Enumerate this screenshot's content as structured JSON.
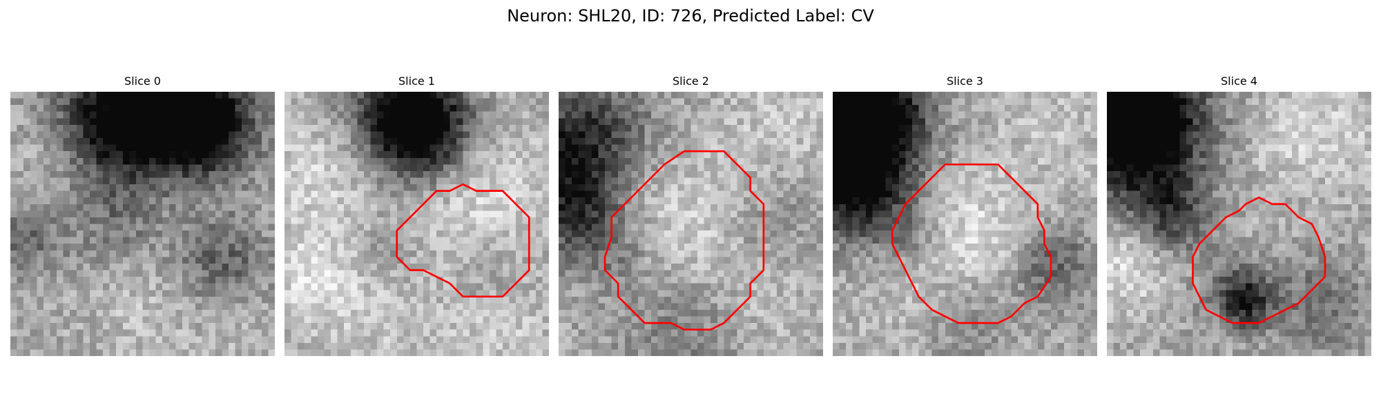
{
  "figure": {
    "title": "Neuron: SHL20, ID: 726, Predicted Label: CV"
  },
  "panels": [
    {
      "title": "Slice 0",
      "contour": []
    },
    {
      "title": "Slice 1",
      "contour": [
        [
          14.5,
          7.5
        ],
        [
          16.5,
          7.5
        ],
        [
          18.5,
          9.5
        ],
        [
          18.5,
          13.5
        ],
        [
          17.5,
          14.5
        ],
        [
          16.5,
          15.5
        ],
        [
          13.5,
          15.5
        ],
        [
          12.5,
          14.5
        ],
        [
          11.5,
          14.0
        ],
        [
          10.5,
          13.5
        ],
        [
          9.5,
          13.5
        ],
        [
          8.5,
          12.5
        ],
        [
          8.5,
          10.5
        ],
        [
          9.5,
          9.5
        ],
        [
          10.5,
          8.5
        ],
        [
          11.5,
          7.5
        ],
        [
          12.5,
          7.5
        ],
        [
          13.5,
          7.0
        ]
      ]
    },
    {
      "title": "Slice 2",
      "contour": [
        [
          10.5,
          4.5
        ],
        [
          12.5,
          4.5
        ],
        [
          13.5,
          5.5
        ],
        [
          14.5,
          6.5
        ],
        [
          14.5,
          7.5
        ],
        [
          15.5,
          8.5
        ],
        [
          15.5,
          13.5
        ],
        [
          14.5,
          14.5
        ],
        [
          14.5,
          15.5
        ],
        [
          13.5,
          16.5
        ],
        [
          12.5,
          17.5
        ],
        [
          11.5,
          18.0
        ],
        [
          9.5,
          18.0
        ],
        [
          8.5,
          17.5
        ],
        [
          6.5,
          17.5
        ],
        [
          5.5,
          16.5
        ],
        [
          4.5,
          15.5
        ],
        [
          4.5,
          14.5
        ],
        [
          3.5,
          13.5
        ],
        [
          3.5,
          12.5
        ],
        [
          4.0,
          11.0
        ],
        [
          4.0,
          9.5
        ],
        [
          5.0,
          8.5
        ],
        [
          6.0,
          7.5
        ],
        [
          7.0,
          6.5
        ],
        [
          8.0,
          5.5
        ],
        [
          9.5,
          4.5
        ]
      ]
    },
    {
      "title": "Slice 3",
      "contour": [
        [
          10.5,
          5.5
        ],
        [
          12.5,
          5.5
        ],
        [
          13.5,
          6.5
        ],
        [
          14.5,
          7.5
        ],
        [
          15.5,
          8.5
        ],
        [
          15.5,
          9.5
        ],
        [
          16.0,
          10.5
        ],
        [
          16.0,
          11.5
        ],
        [
          16.5,
          12.5
        ],
        [
          16.5,
          14.0
        ],
        [
          15.5,
          15.5
        ],
        [
          14.5,
          16.0
        ],
        [
          13.5,
          17.0
        ],
        [
          12.5,
          17.5
        ],
        [
          9.5,
          17.5
        ],
        [
          8.5,
          17.0
        ],
        [
          7.5,
          16.5
        ],
        [
          6.5,
          15.5
        ],
        [
          6.0,
          14.5
        ],
        [
          5.5,
          13.5
        ],
        [
          5.0,
          12.5
        ],
        [
          4.5,
          11.5
        ],
        [
          4.5,
          10.5
        ],
        [
          5.0,
          9.5
        ],
        [
          5.5,
          8.5
        ],
        [
          6.5,
          7.5
        ],
        [
          7.5,
          6.5
        ],
        [
          8.5,
          5.5
        ],
        [
          9.5,
          5.5
        ]
      ]
    },
    {
      "title": "Slice 4",
      "contour": [
        [
          11.5,
          8.0
        ],
        [
          12.5,
          8.5
        ],
        [
          13.5,
          8.5
        ],
        [
          14.5,
          9.5
        ],
        [
          15.5,
          10.0
        ],
        [
          16.0,
          11.0
        ],
        [
          16.5,
          12.5
        ],
        [
          16.5,
          14.0
        ],
        [
          15.5,
          15.0
        ],
        [
          14.5,
          16.0
        ],
        [
          13.5,
          16.5
        ],
        [
          12.5,
          17.0
        ],
        [
          11.5,
          17.5
        ],
        [
          9.5,
          17.5
        ],
        [
          8.5,
          17.0
        ],
        [
          7.5,
          16.5
        ],
        [
          7.0,
          15.5
        ],
        [
          6.5,
          14.5
        ],
        [
          6.5,
          12.5
        ],
        [
          7.0,
          11.5
        ],
        [
          8.0,
          10.5
        ],
        [
          9.0,
          9.5
        ],
        [
          10.0,
          9.0
        ],
        [
          10.5,
          8.5
        ]
      ]
    }
  ]
}
